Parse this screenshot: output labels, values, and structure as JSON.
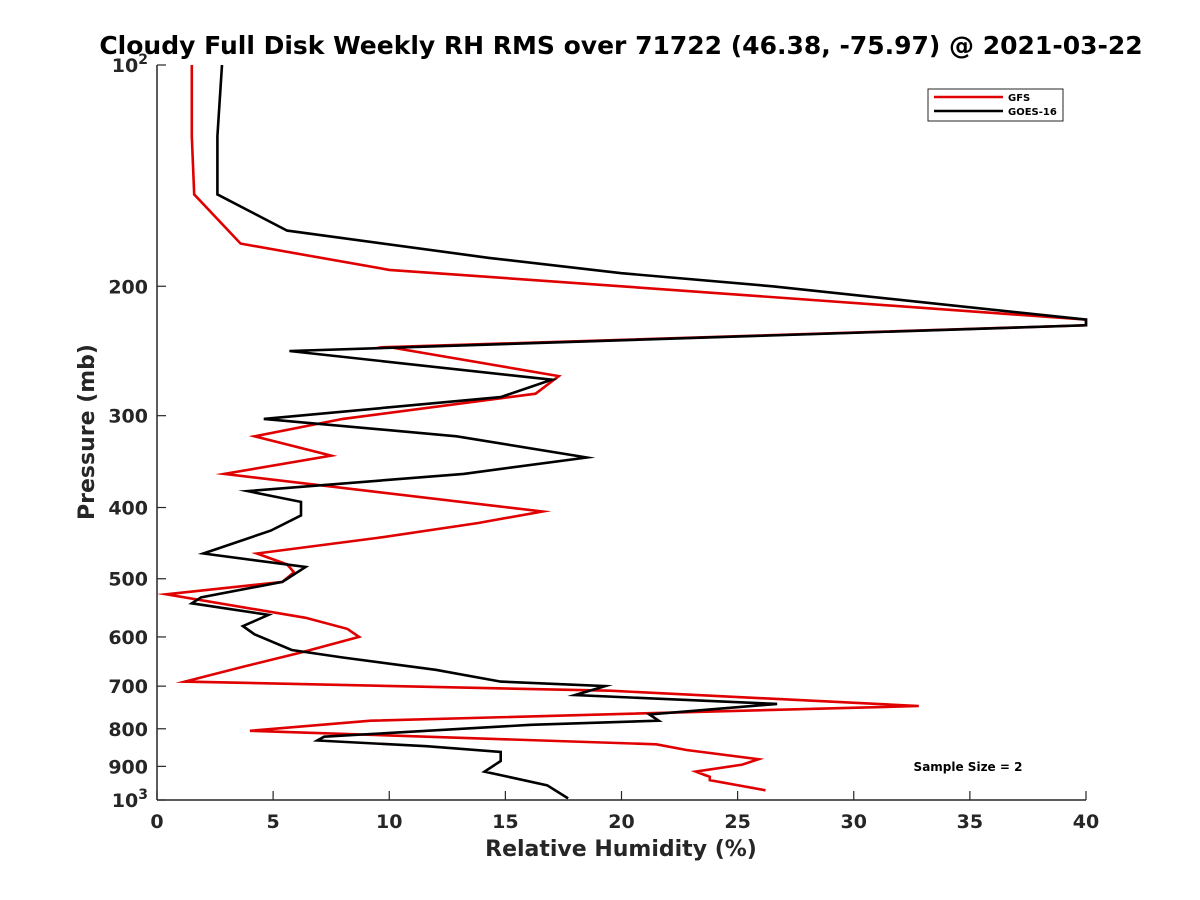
{
  "chart_data": {
    "type": "line",
    "title": "Cloudy Full Disk Weekly RH RMS over 71722 (46.38, -75.97) @ 2021-03-22",
    "xlabel": "Relative Humidity (%)",
    "ylabel": "Pressure (mb)",
    "xlim": [
      0,
      40
    ],
    "ylim": [
      100,
      1000
    ],
    "y_scale": "log",
    "y_reversed": true,
    "x_ticks": [
      0,
      5,
      10,
      15,
      20,
      25,
      30,
      35,
      40
    ],
    "x_tick_labels": [
      "0",
      "5",
      "10",
      "15",
      "20",
      "25",
      "30",
      "35",
      "40"
    ],
    "y_ticks": [
      100,
      200,
      300,
      400,
      500,
      600,
      700,
      800,
      900,
      1000
    ],
    "y_tick_labels": [
      {
        "base": "10",
        "exp": "2"
      },
      {
        "base": "200",
        "exp": ""
      },
      {
        "base": "300",
        "exp": ""
      },
      {
        "base": "400",
        "exp": ""
      },
      {
        "base": "500",
        "exp": ""
      },
      {
        "base": "600",
        "exp": ""
      },
      {
        "base": "700",
        "exp": ""
      },
      {
        "base": "800",
        "exp": ""
      },
      {
        "base": "900",
        "exp": ""
      },
      {
        "base": "10",
        "exp": "3"
      }
    ],
    "grid": false,
    "legend_position": "top-right",
    "annotation": "Sample Size = 2",
    "series": [
      {
        "name": "GFS",
        "color": "#e00000",
        "points": [
          [
            1.5,
            100
          ],
          [
            1.5,
            125
          ],
          [
            1.6,
            150
          ],
          [
            3.6,
            175
          ],
          [
            10,
            190
          ],
          [
            20,
            200
          ],
          [
            40,
            222
          ],
          [
            40,
            226
          ],
          [
            10,
            242
          ],
          [
            17.3,
            265
          ],
          [
            16.3,
            280
          ],
          [
            8,
            303
          ],
          [
            4.2,
            320
          ],
          [
            7.5,
            340
          ],
          [
            2.9,
            360
          ],
          [
            16.6,
            405
          ],
          [
            13.8,
            420
          ],
          [
            9.5,
            440
          ],
          [
            4.3,
            462
          ],
          [
            5.6,
            478
          ],
          [
            5.9,
            490
          ],
          [
            5.4,
            505
          ],
          [
            0.4,
            525
          ],
          [
            6.4,
            565
          ],
          [
            8.2,
            585
          ],
          [
            8.7,
            600
          ],
          [
            6.2,
            630
          ],
          [
            3.6,
            660
          ],
          [
            1.2,
            690
          ],
          [
            19.5,
            710
          ],
          [
            32.8,
            745
          ],
          [
            9.2,
            780
          ],
          [
            4.0,
            805
          ],
          [
            21.5,
            840
          ],
          [
            22.8,
            855
          ],
          [
            25.9,
            880
          ],
          [
            25.2,
            895
          ],
          [
            23.2,
            915
          ],
          [
            23.6,
            925
          ],
          [
            23.8,
            930
          ],
          [
            23.8,
            940
          ],
          [
            26.2,
            970
          ]
        ]
      },
      {
        "name": "GOES-16",
        "color": "#000000",
        "points": [
          [
            2.8,
            100
          ],
          [
            2.6,
            125
          ],
          [
            2.6,
            150
          ],
          [
            5.6,
            168
          ],
          [
            14.3,
            183
          ],
          [
            20,
            192
          ],
          [
            26.5,
            200
          ],
          [
            40,
            222
          ],
          [
            40,
            226
          ],
          [
            5.7,
            245
          ],
          [
            17,
            268
          ],
          [
            14.8,
            283
          ],
          [
            4.6,
            303
          ],
          [
            12.9,
            320
          ],
          [
            18.5,
            342
          ],
          [
            13.2,
            360
          ],
          [
            3.9,
            380
          ],
          [
            6.2,
            393
          ],
          [
            6.2,
            410
          ],
          [
            4.9,
            430
          ],
          [
            2.0,
            462
          ],
          [
            6.4,
            482
          ],
          [
            5.4,
            505
          ],
          [
            1.9,
            530
          ],
          [
            1.5,
            540
          ],
          [
            4.8,
            560
          ],
          [
            3.7,
            580
          ],
          [
            4.2,
            595
          ],
          [
            5.8,
            625
          ],
          [
            8.0,
            640
          ],
          [
            12.0,
            665
          ],
          [
            14.8,
            690
          ],
          [
            19.3,
            700
          ],
          [
            18,
            720
          ],
          [
            26.7,
            740
          ],
          [
            21.2,
            765
          ],
          [
            21.6,
            780
          ],
          [
            16.1,
            790
          ],
          [
            7.2,
            820
          ],
          [
            6.9,
            830
          ],
          [
            11.6,
            845
          ],
          [
            14.8,
            860
          ],
          [
            14.8,
            885
          ],
          [
            14.1,
            915
          ],
          [
            16.8,
            955
          ],
          [
            17.7,
            995
          ]
        ]
      }
    ]
  }
}
